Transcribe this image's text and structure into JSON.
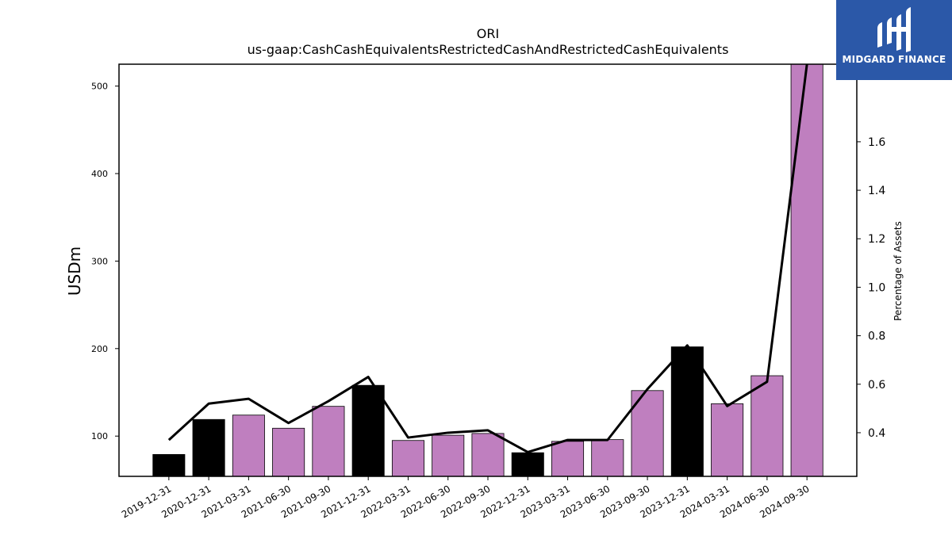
{
  "chart_data": {
    "type": "bar",
    "title": "ORI",
    "subtitle": "us-gaap:CashCashEquivalentsRestrictedCashAndRestrictedCashEquivalents",
    "ylabel": "USDm",
    "ylabel_right": "Percentage of Assets",
    "ylim": [
      54,
      525
    ],
    "ylim_right": [
      0.22,
      1.92
    ],
    "y_ticks": [
      100,
      200,
      300,
      400,
      500
    ],
    "y_right_ticks": [
      0.4,
      0.6,
      0.8,
      1.0,
      1.2,
      1.4,
      1.6
    ],
    "categories": [
      "2019-12-31",
      "2020-12-31",
      "2021-03-31",
      "2021-06-30",
      "2021-09-30",
      "2021-12-31",
      "2022-03-31",
      "2022-06-30",
      "2022-09-30",
      "2022-12-31",
      "2023-03-31",
      "2023-06-30",
      "2023-09-30",
      "2023-12-31",
      "2024-03-31",
      "2024-06-30",
      "2024-09-30"
    ],
    "series": [
      {
        "type": "bar",
        "values": [
          79,
          119,
          124,
          109,
          134,
          158,
          95,
          101,
          103,
          81,
          94,
          96,
          152,
          202,
          137,
          169,
          525
        ],
        "colors": [
          "#000000",
          "#000000",
          "#bf7fbf",
          "#bf7fbf",
          "#bf7fbf",
          "#000000",
          "#bf7fbf",
          "#bf7fbf",
          "#bf7fbf",
          "#000000",
          "#bf7fbf",
          "#bf7fbf",
          "#bf7fbf",
          "#000000",
          "#bf7fbf",
          "#bf7fbf",
          "#bf7fbf"
        ]
      },
      {
        "type": "line",
        "axis": "right",
        "values": [
          0.37,
          0.52,
          0.54,
          0.44,
          0.53,
          0.63,
          0.38,
          0.4,
          0.41,
          0.32,
          0.37,
          0.37,
          0.58,
          0.76,
          0.51,
          0.61,
          1.92
        ],
        "color": "#000000"
      }
    ],
    "grid": false,
    "legend": "none"
  },
  "logo": {
    "text": "MIDGARD FINANCE",
    "background": "#2b58a8"
  }
}
